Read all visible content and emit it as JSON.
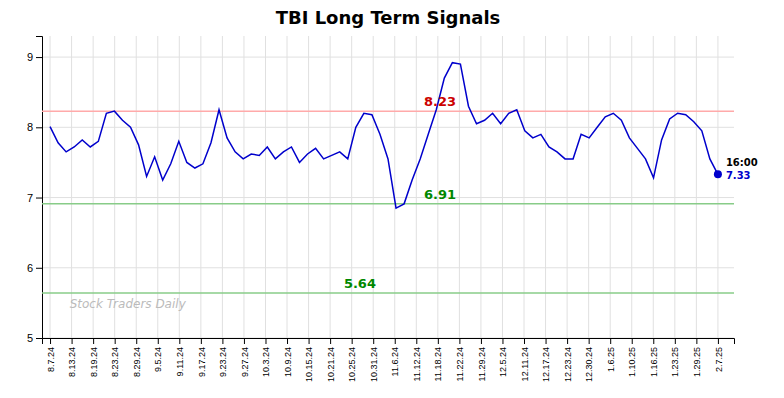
{
  "chart_data": {
    "type": "line",
    "title": "TBI Long Term Signals",
    "color": "#0000cc",
    "grid": true,
    "watermark": "Stock Traders Daily",
    "xlim": [
      -1,
      85
    ],
    "xticks": [
      {
        "value": 0,
        "label": "8.7.24"
      },
      {
        "value": 2.677419,
        "label": "8.13.24"
      },
      {
        "value": 5.354839,
        "label": "8.19.24"
      },
      {
        "value": 8.032258,
        "label": "8.23.24"
      },
      {
        "value": 10.709677,
        "label": "8.29.24"
      },
      {
        "value": 13.387097,
        "label": "9.5.24"
      },
      {
        "value": 16.064516,
        "label": "9.11.24"
      },
      {
        "value": 18.741935,
        "label": "9.17.24"
      },
      {
        "value": 21.419355,
        "label": "9.23.24"
      },
      {
        "value": 24.096774,
        "label": "9.27.24"
      },
      {
        "value": 26.774194,
        "label": "10.3.24"
      },
      {
        "value": 29.451613,
        "label": "10.9.24"
      },
      {
        "value": 32.129032,
        "label": "10.15.24"
      },
      {
        "value": 34.806452,
        "label": "10.21.24"
      },
      {
        "value": 37.483871,
        "label": "10.25.24"
      },
      {
        "value": 40.16129,
        "label": "10.31.24"
      },
      {
        "value": 42.83871,
        "label": "11.6.24"
      },
      {
        "value": 45.516129,
        "label": "11.12.24"
      },
      {
        "value": 48.193548,
        "label": "11.18.24"
      },
      {
        "value": 50.870968,
        "label": "11.22.24"
      },
      {
        "value": 53.548387,
        "label": "11.29.24"
      },
      {
        "value": 56.225806,
        "label": "12.5.24"
      },
      {
        "value": 58.903226,
        "label": "12.11.24"
      },
      {
        "value": 61.580645,
        "label": "12.17.24"
      },
      {
        "value": 64.258065,
        "label": "12.23.24"
      },
      {
        "value": 66.935484,
        "label": "12.30.24"
      },
      {
        "value": 69.612903,
        "label": "1.6.25"
      },
      {
        "value": 72.290323,
        "label": "1.10.25"
      },
      {
        "value": 74.967742,
        "label": "1.16.25"
      },
      {
        "value": 77.645161,
        "label": "1.23.25"
      },
      {
        "value": 80.322581,
        "label": "1.29.25"
      },
      {
        "value": 83,
        "label": "2.7.25"
      }
    ],
    "ylim": [
      5.0,
      9.3
    ],
    "yticks": [
      5,
      6,
      7,
      8,
      9
    ],
    "values": [
      8.01,
      7.78,
      7.65,
      7.72,
      7.82,
      7.72,
      7.8,
      8.2,
      8.23,
      8.1,
      8.0,
      7.75,
      7.3,
      7.58,
      7.25,
      7.48,
      7.8,
      7.5,
      7.42,
      7.48,
      7.78,
      8.25,
      7.85,
      7.65,
      7.55,
      7.62,
      7.6,
      7.72,
      7.55,
      7.65,
      7.72,
      7.5,
      7.62,
      7.7,
      7.55,
      7.6,
      7.65,
      7.55,
      8.0,
      8.2,
      8.18,
      7.9,
      7.55,
      6.85,
      6.91,
      7.25,
      7.55,
      7.9,
      8.25,
      8.7,
      8.92,
      8.9,
      8.3,
      8.05,
      8.1,
      8.2,
      8.05,
      8.2,
      8.25,
      7.95,
      7.85,
      7.9,
      7.72,
      7.65,
      7.55,
      7.55,
      7.9,
      7.85,
      8.0,
      8.15,
      8.2,
      8.1,
      7.85,
      7.7,
      7.55,
      7.28,
      7.82,
      8.12,
      8.2,
      8.18,
      8.08,
      7.95,
      7.55,
      7.33
    ],
    "hlines": [
      {
        "value": 8.23,
        "color": "#ffaaaa",
        "label": "8.23",
        "label_color": "#cc0000"
      },
      {
        "value": 6.91,
        "color": "#88cc88",
        "label": "6.91",
        "label_color": "#008800"
      },
      {
        "value": 5.64,
        "color": "#88cc88",
        "label": "5.64",
        "label_color": "#008800"
      }
    ],
    "end_point": {
      "time_label": "16:00",
      "color": "#0000cc"
    }
  }
}
